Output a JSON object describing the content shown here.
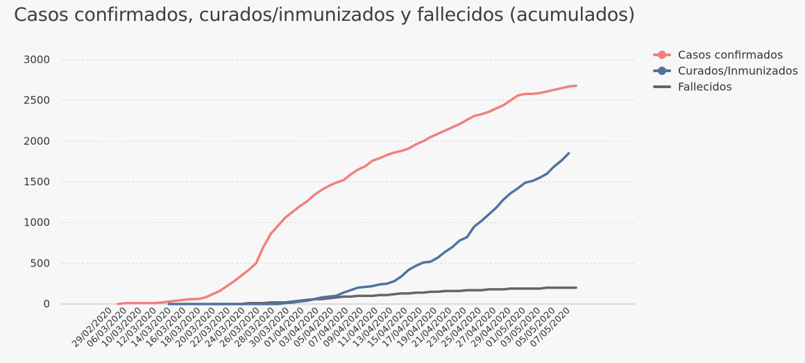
{
  "title": "Casos confirmados, curados/inmunizados y fallecidos (acumulados)",
  "chart_data": {
    "type": "line",
    "title": "Casos confirmados, curados/inmunizados y fallecidos (acumulados)",
    "xlabel": "",
    "ylabel": "",
    "ylim": [
      0,
      3000
    ],
    "yticks": [
      0,
      500,
      1000,
      1500,
      2000,
      2500,
      3000
    ],
    "grid": true,
    "legend_position": "top-right",
    "x_tick_labels": [
      "29/02/2020",
      "06/03/2020",
      "10/03/2020",
      "12/03/2020",
      "14/03/2020",
      "16/03/2020",
      "18/03/2020",
      "20/03/2020",
      "22/03/2020",
      "24/03/2020",
      "26/03/2020",
      "28/03/2020",
      "30/03/2020",
      "01/04/2020",
      "03/04/2020",
      "05/04/2020",
      "07/04/2020",
      "09/04/2020",
      "11/04/2020",
      "13/04/2020",
      "15/04/2020",
      "17/04/2020",
      "19/04/2020",
      "21/04/2020",
      "23/04/2020",
      "25/04/2020",
      "27/04/2020",
      "29/04/2020",
      "01/05/2020",
      "03/05/2020",
      "05/05/2020",
      "07/05/2020"
    ],
    "series": [
      {
        "name": "Casos confirmados",
        "color": "#f08080",
        "marker": "circle",
        "values": [
          0,
          10,
          10,
          10,
          10,
          10,
          20,
          30,
          40,
          50,
          60,
          60,
          80,
          120,
          160,
          220,
          280,
          350,
          420,
          500,
          700,
          860,
          960,
          1060,
          1130,
          1200,
          1260,
          1340,
          1400,
          1450,
          1490,
          1520,
          1590,
          1650,
          1690,
          1760,
          1790,
          1830,
          1860,
          1880,
          1910,
          1960,
          2000,
          2050,
          2090,
          2130,
          2170,
          2210,
          2260,
          2310,
          2330,
          2360,
          2400,
          2440,
          2500,
          2560,
          2580,
          2580,
          2590,
          2610,
          2630,
          2650,
          2670,
          2680
        ]
      },
      {
        "name": "Curados/Inmunizados",
        "color": "#4f73a0",
        "marker": "circle",
        "start_index": 7,
        "values": [
          0,
          0,
          0,
          0,
          0,
          0,
          0,
          0,
          0,
          0,
          0,
          0,
          0,
          0,
          0,
          0,
          10,
          20,
          30,
          40,
          60,
          80,
          90,
          100,
          140,
          170,
          200,
          210,
          220,
          240,
          250,
          280,
          340,
          420,
          470,
          510,
          520,
          570,
          640,
          700,
          780,
          820,
          950,
          1020,
          1100,
          1180,
          1280,
          1360,
          1420,
          1490,
          1510,
          1550,
          1600,
          1690,
          1760,
          1850
        ]
      },
      {
        "name": "Fallecidos",
        "color": "#666666",
        "marker": "line",
        "start_index": 13,
        "values": [
          0,
          0,
          0,
          0,
          0,
          10,
          10,
          10,
          20,
          20,
          20,
          30,
          40,
          50,
          60,
          60,
          70,
          80,
          90,
          90,
          100,
          100,
          100,
          110,
          110,
          120,
          130,
          130,
          140,
          140,
          150,
          150,
          160,
          160,
          160,
          170,
          170,
          170,
          180,
          180,
          180,
          190,
          190,
          190,
          190,
          190,
          200,
          200,
          200,
          200,
          200
        ]
      }
    ]
  }
}
